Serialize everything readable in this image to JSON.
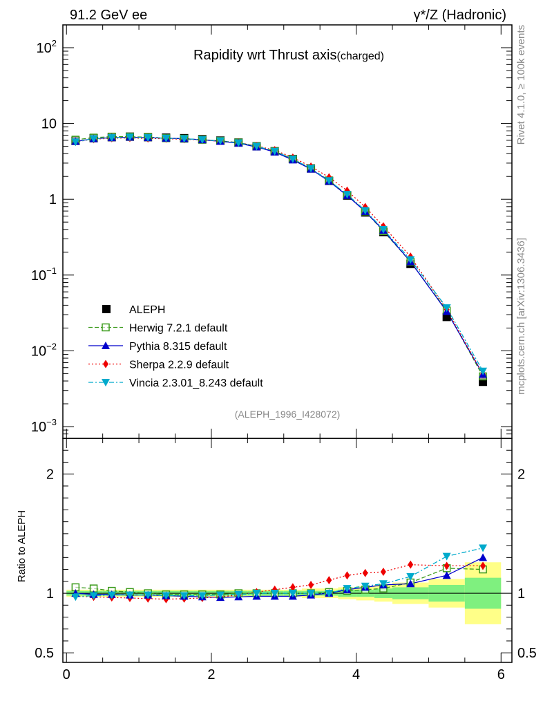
{
  "header": {
    "left": "91.2 GeV ee",
    "right": "γ*/Z (Hadronic)"
  },
  "title": {
    "main": "Rapidity wrt Thrust axis",
    "sub": "(charged)"
  },
  "side_labels": {
    "rivet": "Rivet 4.1.0, ≥ 100k events",
    "mcplots": "mcplots.cern.ch [arXiv:1306.3436]"
  },
  "analysis_tag": "(ALEPH_1996_I428072)",
  "ratio_ylabel": "Ratio to ALEPH",
  "colors": {
    "aleph": "#000000",
    "herwig": "#3a9a1a",
    "pythia": "#0000cc",
    "sherpa": "#ee0000",
    "vincia": "#00aacc",
    "band_inner": "#7ff07f",
    "band_outer": "#ffff88"
  },
  "chart_data": [
    {
      "type": "line",
      "scale": "log",
      "xlim": [
        -0.05,
        6.15
      ],
      "ylim": [
        0.0007,
        200
      ],
      "x": [
        0.125,
        0.375,
        0.625,
        0.875,
        1.125,
        1.375,
        1.625,
        1.875,
        2.125,
        2.375,
        2.625,
        2.875,
        3.125,
        3.375,
        3.625,
        3.875,
        4.125,
        4.375,
        4.75,
        5.25,
        5.75
      ],
      "ytick_labels": [
        {
          "value": 100,
          "base": "10",
          "exp": "2"
        },
        {
          "value": 10,
          "base": "10",
          "exp": ""
        },
        {
          "value": 1,
          "base": "1",
          "exp": ""
        },
        {
          "value": 0.1,
          "base": "10",
          "exp": "−1"
        },
        {
          "value": 0.01,
          "base": "10",
          "exp": "−2"
        },
        {
          "value": 0.001,
          "base": "10",
          "exp": "−3"
        }
      ],
      "series": [
        {
          "name": "ALEPH",
          "key": "aleph",
          "values": [
            5.9,
            6.4,
            6.6,
            6.7,
            6.6,
            6.5,
            6.4,
            6.2,
            5.95,
            5.6,
            5.0,
            4.3,
            3.4,
            2.55,
            1.75,
            1.12,
            0.67,
            0.37,
            0.14,
            0.028,
            0.0039
          ]
        },
        {
          "name": "Herwig 7.2.1 default",
          "key": "herwig",
          "values": [
            6.1,
            6.5,
            6.7,
            6.7,
            6.6,
            6.4,
            6.3,
            6.1,
            5.9,
            5.6,
            5.0,
            4.3,
            3.4,
            2.55,
            1.77,
            1.14,
            0.69,
            0.38,
            0.15,
            0.034,
            0.0046
          ]
        },
        {
          "name": "Pythia 8.315 default",
          "key": "pythia",
          "values": [
            5.8,
            6.3,
            6.5,
            6.6,
            6.5,
            6.4,
            6.3,
            6.1,
            5.8,
            5.5,
            4.9,
            4.2,
            3.3,
            2.5,
            1.73,
            1.12,
            0.69,
            0.39,
            0.15,
            0.033,
            0.0049
          ]
        },
        {
          "name": "Sherpa 2.2.9 default",
          "key": "sherpa",
          "values": [
            5.75,
            6.2,
            6.4,
            6.45,
            6.35,
            6.3,
            6.2,
            6.05,
            5.85,
            5.6,
            5.05,
            4.45,
            3.55,
            2.7,
            1.95,
            1.3,
            0.79,
            0.44,
            0.175,
            0.035,
            0.0049
          ]
        },
        {
          "name": "Vincia 2.3.01_8.243 default",
          "key": "vincia",
          "values": [
            5.7,
            6.3,
            6.5,
            6.6,
            6.5,
            6.4,
            6.3,
            6.1,
            5.9,
            5.55,
            5.0,
            4.3,
            3.4,
            2.55,
            1.76,
            1.16,
            0.71,
            0.4,
            0.16,
            0.037,
            0.0054
          ]
        }
      ]
    },
    {
      "type": "line",
      "ylabel": "Ratio to ALEPH",
      "xlim": [
        -0.05,
        6.15
      ],
      "ylim": [
        0.42,
        2.3
      ],
      "yticks": [
        0.5,
        1,
        2
      ],
      "ytick_labels": [
        "0.5",
        "1",
        "2"
      ],
      "xticks": [
        0,
        2,
        4,
        6
      ],
      "xtick_labels": [
        "0",
        "2",
        "4",
        "6"
      ],
      "x": [
        0.125,
        0.375,
        0.625,
        0.875,
        1.125,
        1.375,
        1.625,
        1.875,
        2.125,
        2.375,
        2.625,
        2.875,
        3.125,
        3.375,
        3.625,
        3.875,
        4.125,
        4.375,
        4.75,
        5.25,
        5.75
      ],
      "bins": [
        [
          0,
          0.25
        ],
        [
          0.25,
          0.5
        ],
        [
          0.5,
          0.75
        ],
        [
          0.75,
          1.0
        ],
        [
          1.0,
          1.25
        ],
        [
          1.25,
          1.5
        ],
        [
          1.5,
          1.75
        ],
        [
          1.75,
          2.0
        ],
        [
          2.0,
          2.25
        ],
        [
          2.25,
          2.5
        ],
        [
          2.5,
          2.75
        ],
        [
          2.75,
          3.0
        ],
        [
          3.0,
          3.25
        ],
        [
          3.25,
          3.5
        ],
        [
          3.5,
          3.75
        ],
        [
          3.75,
          4.0
        ],
        [
          4.0,
          4.25
        ],
        [
          4.25,
          4.5
        ],
        [
          4.5,
          5.0
        ],
        [
          5.0,
          5.5
        ],
        [
          5.5,
          6.0
        ]
      ],
      "band_inner": [
        0.02,
        0.02,
        0.02,
        0.02,
        0.02,
        0.02,
        0.02,
        0.02,
        0.02,
        0.02,
        0.02,
        0.02,
        0.02,
        0.02,
        0.02,
        0.03,
        0.03,
        0.04,
        0.05,
        0.07,
        0.13
      ],
      "band_outer": [
        0.03,
        0.03,
        0.03,
        0.03,
        0.03,
        0.03,
        0.03,
        0.03,
        0.03,
        0.03,
        0.03,
        0.03,
        0.03,
        0.04,
        0.04,
        0.05,
        0.06,
        0.07,
        0.09,
        0.12,
        0.26
      ],
      "series": [
        {
          "name": "Herwig 7.2.1 default",
          "key": "herwig",
          "values": [
            1.05,
            1.04,
            1.02,
            1.01,
            1.0,
            0.99,
            0.99,
            0.99,
            0.99,
            1.0,
            1.0,
            1.0,
            1.0,
            1.0,
            1.01,
            1.02,
            1.03,
            1.04,
            1.09,
            1.21,
            1.2
          ]
        },
        {
          "name": "Pythia 8.315 default",
          "key": "pythia",
          "values": [
            1.0,
            0.99,
            0.99,
            0.985,
            0.985,
            0.98,
            0.975,
            0.97,
            0.965,
            0.97,
            0.975,
            0.975,
            0.975,
            0.985,
            1.0,
            1.03,
            1.05,
            1.07,
            1.08,
            1.15,
            1.3
          ]
        },
        {
          "name": "Sherpa 2.2.9 default",
          "key": "sherpa",
          "values": [
            0.975,
            0.97,
            0.965,
            0.96,
            0.955,
            0.95,
            0.955,
            0.96,
            0.97,
            0.985,
            1.01,
            1.03,
            1.05,
            1.07,
            1.11,
            1.15,
            1.17,
            1.18,
            1.24,
            1.23,
            1.23
          ]
        },
        {
          "name": "Vincia 2.3.01_8.243 default",
          "key": "vincia",
          "values": [
            0.97,
            0.98,
            0.985,
            0.985,
            0.985,
            0.98,
            0.98,
            0.98,
            0.985,
            0.99,
            1.0,
            1.0,
            1.0,
            1.0,
            1.0,
            1.04,
            1.06,
            1.08,
            1.14,
            1.31,
            1.38
          ]
        }
      ]
    }
  ]
}
